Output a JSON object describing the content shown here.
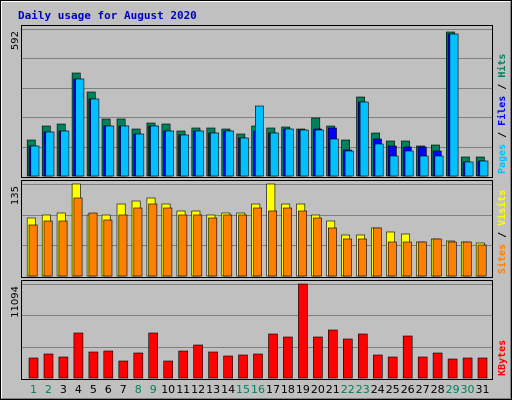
{
  "title": "Daily usage for August 2020",
  "colors": {
    "background": "#c0c0c0",
    "panel": "#c0c0c0",
    "grid": "#808080",
    "title": "#0000c0",
    "hits": "#00805c",
    "files": "#0000ff",
    "pages": "#00c0ff",
    "visits": "#ffff00",
    "sites": "#ff8000",
    "kbytes": "#ff0000",
    "weekday_label": "#000000",
    "weekend_label": "#00805c"
  },
  "chart_data": {
    "type": "bar",
    "categories": [
      "1",
      "2",
      "3",
      "4",
      "5",
      "6",
      "7",
      "8",
      "9",
      "10",
      "11",
      "12",
      "13",
      "14",
      "15",
      "16",
      "17",
      "18",
      "19",
      "20",
      "21",
      "22",
      "23",
      "24",
      "25",
      "26",
      "27",
      "28",
      "29",
      "30",
      "31"
    ],
    "weekend_days": [
      1,
      2,
      8,
      9,
      15,
      16,
      22,
      23,
      29,
      30
    ],
    "panels": [
      {
        "id": "traffic",
        "max_label": "592",
        "ylim": [
          0,
          592
        ],
        "legend": [
          "Pages",
          "/",
          "Files",
          "/",
          "Hits"
        ],
        "series": [
          {
            "name": "Hits",
            "values": [
              145,
              200,
              208,
              416,
              340,
              230,
              230,
              190,
              213,
              208,
              180,
              195,
              195,
              190,
              168,
              200,
              195,
              198,
              190,
              235,
              203,
              145,
              320,
              173,
              140,
              142,
              120,
              125,
              580,
              75,
              75
            ]
          },
          {
            "name": "Files",
            "values": [
              120,
              178,
              180,
              390,
              310,
              200,
              200,
              170,
              200,
              180,
              165,
              180,
              175,
              180,
              155,
              180,
              175,
              188,
              185,
              190,
              195,
              105,
              300,
              150,
              120,
              118,
              118,
              100,
              570,
              58,
              60
            ]
          },
          {
            "name": "Pages",
            "values": [
              120,
              178,
              180,
              390,
              310,
              200,
              200,
              170,
              200,
              180,
              165,
              180,
              175,
              180,
              155,
              280,
              175,
              188,
              185,
              185,
              150,
              100,
              300,
              130,
              80,
              100,
              80,
              80,
              570,
              58,
              60
            ]
          }
        ]
      },
      {
        "id": "visitors",
        "max_label": "135",
        "ylim": [
          0,
          135
        ],
        "legend": [
          "Sites",
          "/",
          "Visits"
        ],
        "series": [
          {
            "name": "Visits",
            "values": [
              85,
              90,
              92,
              135,
              90,
              90,
              105,
              110,
              115,
              105,
              95,
              95,
              90,
              92,
              92,
              105,
              135,
              105,
              105,
              90,
              80,
              60,
              60,
              70,
              65,
              62,
              50,
              55,
              52,
              50,
              48
            ]
          },
          {
            "name": "Sites",
            "values": [
              75,
              80,
              80,
              115,
              92,
              82,
              90,
              100,
              105,
              100,
              90,
              90,
              85,
              90,
              90,
              100,
              95,
              100,
              95,
              85,
              70,
              55,
              55,
              70,
              50,
              50,
              50,
              55,
              50,
              50,
              45
            ]
          }
        ]
      },
      {
        "id": "volume",
        "max_label": "11094",
        "ylim": [
          0,
          11094
        ],
        "legend": [
          "KBytes"
        ],
        "series": [
          {
            "name": "KBytes",
            "values": [
              2400,
              2850,
              2500,
              5350,
              3050,
              3150,
              2050,
              2900,
              5350,
              2000,
              3150,
              3950,
              3100,
              2650,
              2700,
              2800,
              5150,
              4800,
              11094,
              4850,
              5700,
              4650,
              5200,
              2700,
              2500,
              4900,
              2500,
              3000,
              2250,
              2400,
              2350
            ]
          }
        ]
      }
    ]
  }
}
